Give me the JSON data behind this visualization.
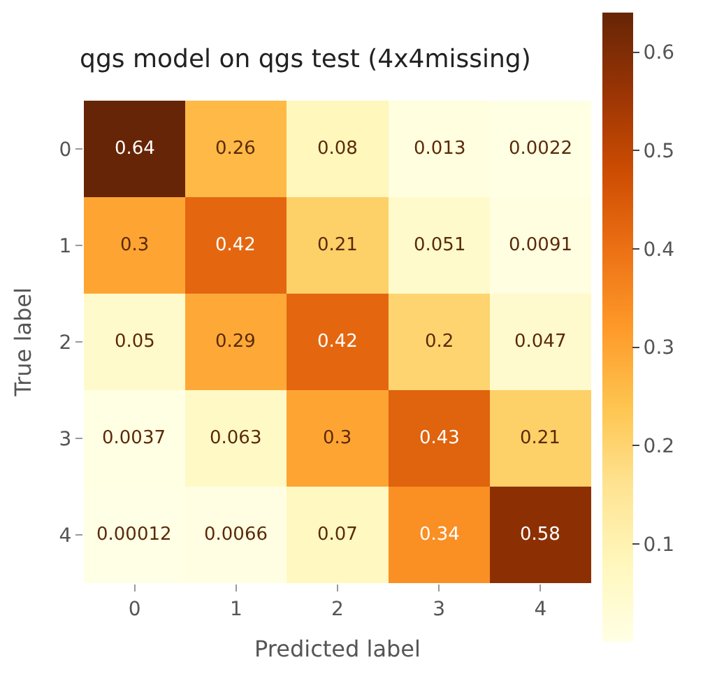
{
  "chart_data": {
    "type": "heatmap",
    "title": "qgs model on qgs test (4x4missing)",
    "xlabel": "Predicted label",
    "ylabel": "True label",
    "categories": [
      "0",
      "1",
      "2",
      "3",
      "4"
    ],
    "y_categories": [
      "0",
      "1",
      "2",
      "3",
      "4"
    ],
    "cells": [
      [
        0.64,
        0.26,
        0.08,
        0.013,
        0.0022
      ],
      [
        0.3,
        0.42,
        0.21,
        0.051,
        0.0091
      ],
      [
        0.05,
        0.29,
        0.42,
        0.2,
        0.047
      ],
      [
        0.0037,
        0.063,
        0.3,
        0.43,
        0.21
      ],
      [
        0.00012,
        0.0066,
        0.07,
        0.34,
        0.58
      ]
    ],
    "clim": [
      0.00012,
      0.64
    ],
    "cticks": [
      0.1,
      0.2,
      0.3,
      0.4,
      0.5,
      0.6
    ],
    "data_labels": true
  }
}
